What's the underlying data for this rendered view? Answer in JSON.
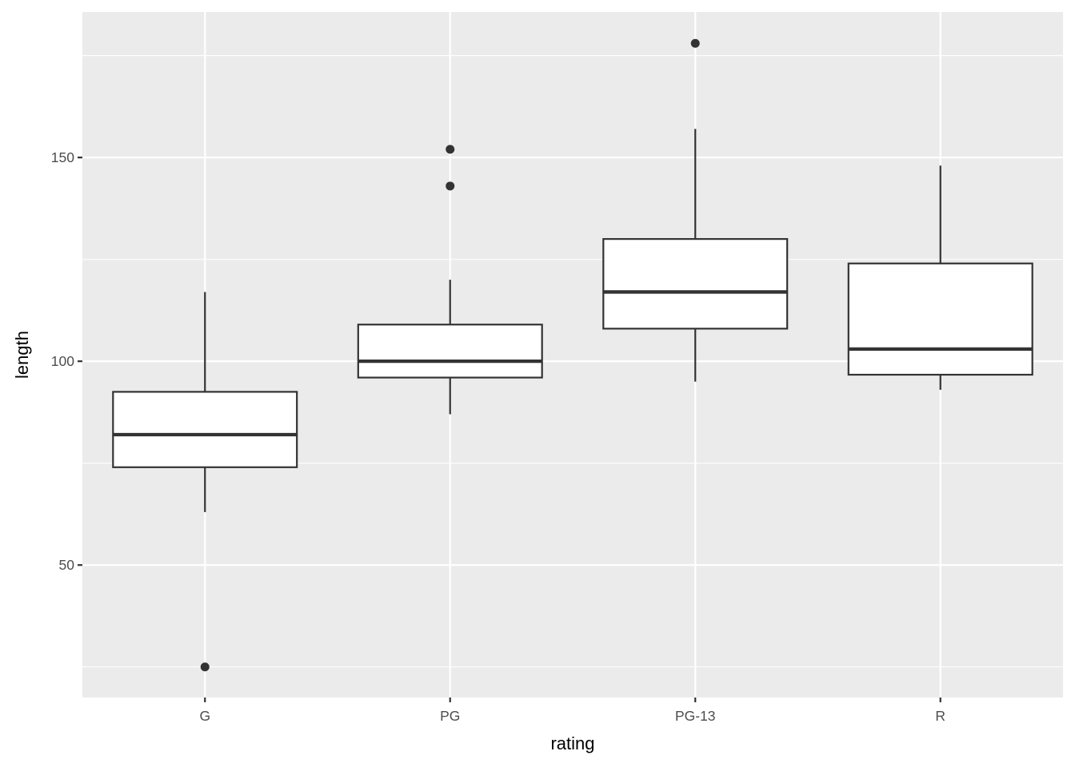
{
  "chart_data": {
    "type": "boxplot",
    "xlabel": "rating",
    "ylabel": "length",
    "ylim": [
      17.5,
      185.7
    ],
    "y_ticks": [
      50,
      100,
      150
    ],
    "y_minor_ticks": [
      25,
      75,
      125,
      175
    ],
    "grid": true,
    "categories": [
      "G",
      "PG",
      "PG-13",
      "R"
    ],
    "boxes": [
      {
        "category": "G",
        "whisker_low": 63,
        "q1": 74,
        "median": 82,
        "q3": 92.5,
        "whisker_high": 117,
        "outliers": [
          25
        ]
      },
      {
        "category": "PG",
        "whisker_low": 87,
        "q1": 96,
        "median": 100,
        "q3": 109,
        "whisker_high": 120,
        "outliers": [
          143,
          152
        ]
      },
      {
        "category": "PG-13",
        "whisker_low": 95,
        "q1": 108,
        "median": 117,
        "q3": 130,
        "whisker_high": 157,
        "outliers": [
          178
        ]
      },
      {
        "category": "R",
        "whisker_low": 93,
        "q1": 96.7,
        "median": 103,
        "q3": 124,
        "whisker_high": 148,
        "outliers": []
      }
    ],
    "colors": {
      "panel": "#EBEBEB",
      "grid": "#FFFFFF",
      "box_fill": "#FFFFFF",
      "box_line": "#333333",
      "tick_text": "#4D4D4D"
    }
  }
}
